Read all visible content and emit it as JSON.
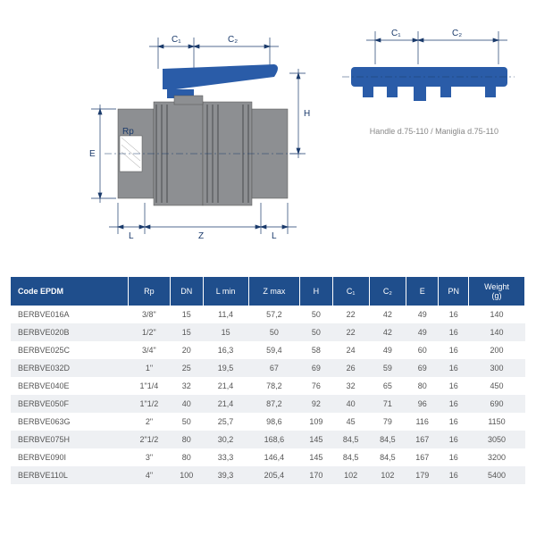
{
  "diagram": {
    "valve_body_color": "#8d8f92",
    "valve_body_dark": "#6b6d70",
    "handle_color": "#2a5ca8",
    "line_color": "#1a3a6b",
    "dim_text_color": "#1a3a6b",
    "handle_caption": "Handle d.75-110 / Maniglia d.75-110",
    "labels": {
      "C1": "C₁",
      "C2": "C₂",
      "H": "H",
      "E": "E",
      "Rp": "Rp",
      "L": "L",
      "Z": "Z"
    }
  },
  "table": {
    "header_bg": "#1f4e8c",
    "row_alt_bg": "#eef0f3",
    "columns": [
      "Code EPDM",
      "Rp",
      "DN",
      "L min",
      "Z max",
      "H",
      "C₁",
      "C₂",
      "E",
      "PN",
      "Weight (g)"
    ],
    "rows": [
      [
        "BERBVE016A",
        "3/8\"",
        "15",
        "11,4",
        "57,2",
        "50",
        "22",
        "42",
        "49",
        "16",
        "140"
      ],
      [
        "BERBVE020B",
        "1/2\"",
        "15",
        "15",
        "50",
        "50",
        "22",
        "42",
        "49",
        "16",
        "140"
      ],
      [
        "BERBVE025C",
        "3/4\"",
        "20",
        "16,3",
        "59,4",
        "58",
        "24",
        "49",
        "60",
        "16",
        "200"
      ],
      [
        "BERBVE032D",
        "1\"",
        "25",
        "19,5",
        "67",
        "69",
        "26",
        "59",
        "69",
        "16",
        "300"
      ],
      [
        "BERBVE040E",
        "1\"1/4",
        "32",
        "21,4",
        "78,2",
        "76",
        "32",
        "65",
        "80",
        "16",
        "450"
      ],
      [
        "BERBVE050F",
        "1\"1/2",
        "40",
        "21,4",
        "87,2",
        "92",
        "40",
        "71",
        "96",
        "16",
        "690"
      ],
      [
        "BERBVE063G",
        "2\"",
        "50",
        "25,7",
        "98,6",
        "109",
        "45",
        "79",
        "116",
        "16",
        "1150"
      ],
      [
        "BERBVE075H",
        "2\"1/2",
        "80",
        "30,2",
        "168,6",
        "145",
        "84,5",
        "84,5",
        "167",
        "16",
        "3050"
      ],
      [
        "BERBVE090I",
        "3\"",
        "80",
        "33,3",
        "146,4",
        "145",
        "84,5",
        "84,5",
        "167",
        "16",
        "3200"
      ],
      [
        "BERBVE110L",
        "4\"",
        "100",
        "39,3",
        "205,4",
        "170",
        "102",
        "102",
        "179",
        "16",
        "5400"
      ]
    ]
  }
}
